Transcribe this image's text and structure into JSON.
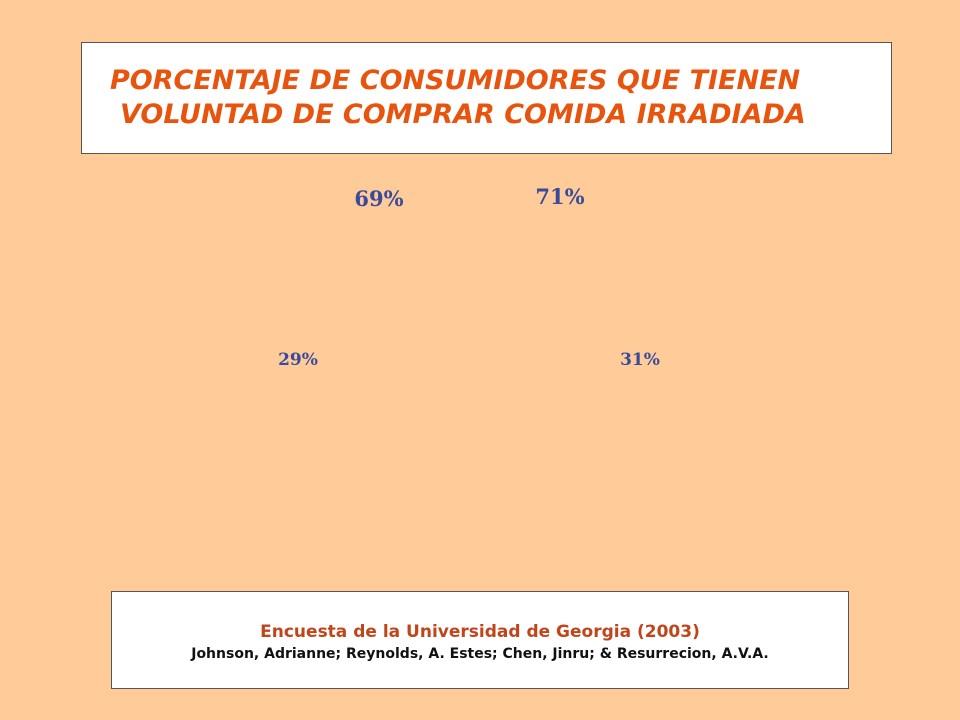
{
  "title": {
    "line1": "PORCENTAJE DE CONSUMIDORES QUE TIENEN",
    "line2": "VOLUNTAD DE COMPRAR COMIDA IRRADIADA"
  },
  "chart_data": {
    "type": "pie",
    "title": "PORCENTAJE DE CONSUMIDORES QUE TIENEN VOLUNTAD DE COMPRAR COMIDA IRRADIADA",
    "label_color": "#3A4A9C",
    "charts": [
      {
        "slices": [
          {
            "value": 69,
            "label": "69%"
          },
          {
            "value": 29,
            "label": "29%"
          }
        ]
      },
      {
        "slices": [
          {
            "value": 71,
            "label": "71%"
          },
          {
            "value": 31,
            "label": "31%"
          }
        ]
      }
    ]
  },
  "source": {
    "main": "Encuesta de la Universidad de Georgia (2003)",
    "authors": "Johnson, Adrianne; Reynolds, A. Estes; Chen, Jinru; & Resurrecion, A.V.A."
  },
  "colors": {
    "background": "#FFCC99",
    "title": "#E8530E",
    "source_title": "#C0451B"
  }
}
